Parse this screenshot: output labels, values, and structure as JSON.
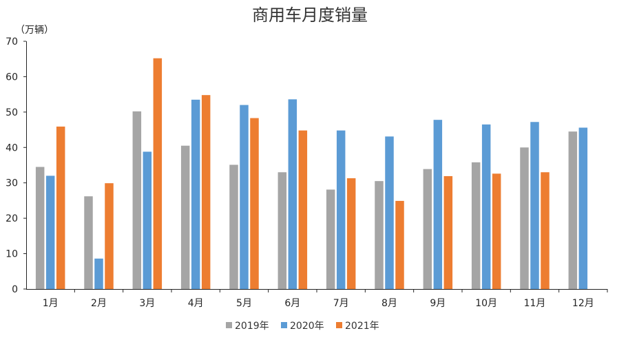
{
  "chart_data": {
    "type": "bar",
    "title": "商用车月度销量",
    "ylabel": "（万辆）",
    "xlabel": "",
    "ylim": [
      0,
      70
    ],
    "yticks": [
      0,
      10,
      20,
      30,
      40,
      50,
      60,
      70
    ],
    "categories": [
      "1月",
      "2月",
      "3月",
      "4月",
      "5月",
      "6月",
      "7月",
      "8月",
      "9月",
      "10月",
      "11月",
      "12月"
    ],
    "series": [
      {
        "name": "2019年",
        "color": "#a5a5a5",
        "values": [
          34.5,
          26.2,
          50.2,
          40.5,
          35.1,
          33.0,
          28.1,
          30.5,
          33.9,
          35.8,
          40.0,
          44.5
        ]
      },
      {
        "name": "2020年",
        "color": "#5b9bd5",
        "values": [
          32.0,
          8.6,
          38.8,
          53.5,
          52.0,
          53.6,
          44.8,
          43.1,
          47.8,
          46.5,
          47.2,
          45.6
        ]
      },
      {
        "name": "2021年",
        "color": "#ed7d31",
        "values": [
          45.9,
          29.9,
          65.2,
          54.8,
          48.3,
          44.8,
          31.3,
          24.9,
          31.9,
          32.6,
          33.0,
          null
        ]
      }
    ],
    "legend": "bottom-center",
    "grid": false
  }
}
